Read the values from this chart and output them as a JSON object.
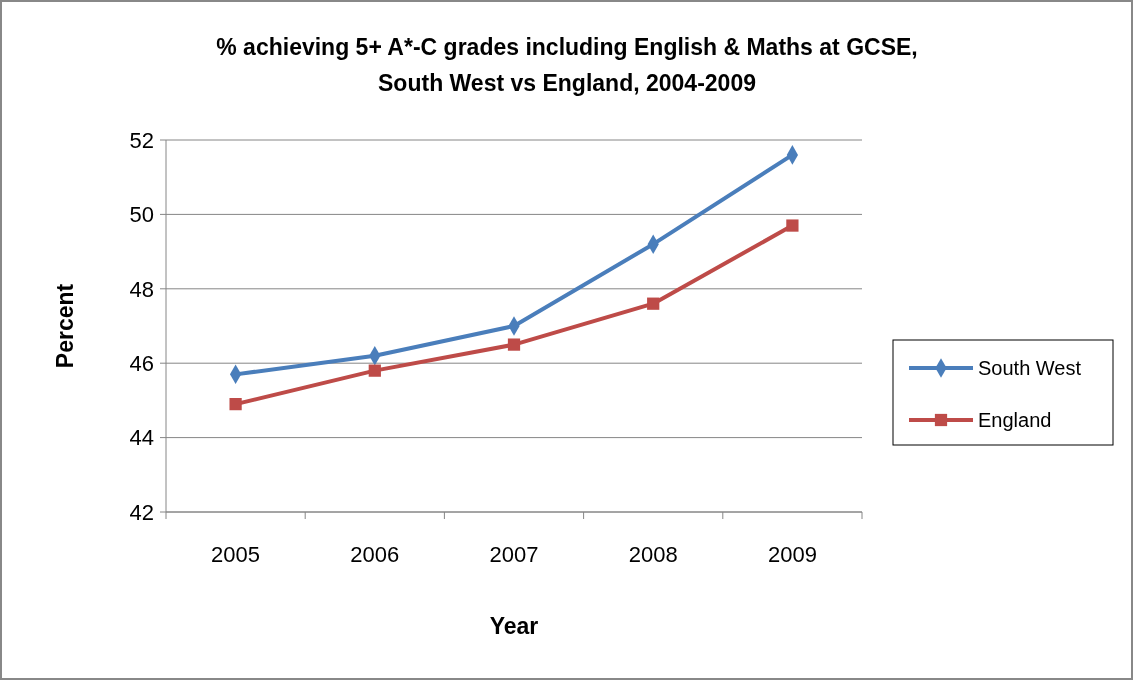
{
  "chart_data": {
    "type": "line",
    "title": "% achieving 5+ A*-C grades including English & Maths at GCSE, South West vs England, 2004-2009",
    "xlabel": "Year",
    "ylabel": "Percent",
    "categories": [
      "2005",
      "2006",
      "2007",
      "2008",
      "2009"
    ],
    "series": [
      {
        "name": "South West",
        "color": "#4a7ebb",
        "marker": "diamond",
        "values": [
          45.7,
          46.2,
          47.0,
          49.2,
          51.6
        ]
      },
      {
        "name": "England",
        "color": "#be4b48",
        "marker": "square",
        "values": [
          44.9,
          45.8,
          46.5,
          47.6,
          49.7
        ]
      }
    ],
    "ylim": [
      42,
      52
    ],
    "yticks": [
      42,
      44,
      46,
      48,
      50,
      52
    ],
    "grid": "y",
    "legend": "right",
    "line_style": "solid"
  }
}
